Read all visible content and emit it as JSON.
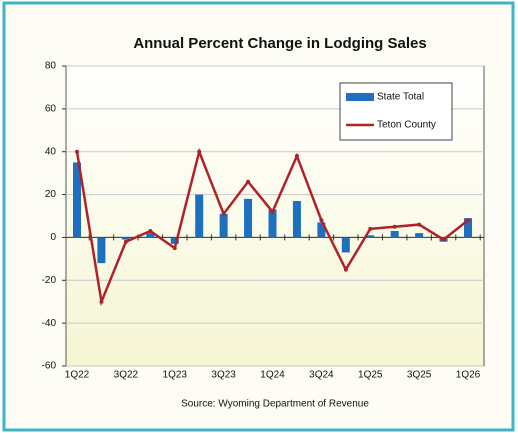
{
  "chart_data": {
    "type": "bar_line",
    "title": "Annual Percent Change in Lodging Sales",
    "source": "Source: Wyoming Department of Revenue",
    "categories": [
      "1Q22",
      null,
      "3Q22",
      null,
      "1Q23",
      null,
      "3Q23",
      null,
      "1Q24",
      null,
      "3Q24",
      null,
      "1Q25",
      null,
      "3Q25",
      null,
      "1Q26"
    ],
    "series": [
      {
        "name": "State Total",
        "type": "bar",
        "color": "#1f6fc0",
        "values": [
          35,
          -12,
          -1,
          2,
          -3,
          20,
          11,
          18,
          13,
          17,
          7,
          -7,
          1,
          3,
          2,
          -2,
          9
        ]
      },
      {
        "name": "Teton County",
        "type": "line",
        "color": "#b0222a",
        "values": [
          40,
          -30,
          -2,
          3,
          -5,
          40,
          11,
          26,
          12,
          38,
          8,
          -15,
          4,
          5,
          6,
          -1,
          8
        ]
      }
    ],
    "ylim": [
      -60,
      80
    ],
    "yticks": [
      -60,
      -40,
      -20,
      0,
      20,
      40,
      60,
      80
    ],
    "grid": true,
    "legend": "upper right"
  }
}
